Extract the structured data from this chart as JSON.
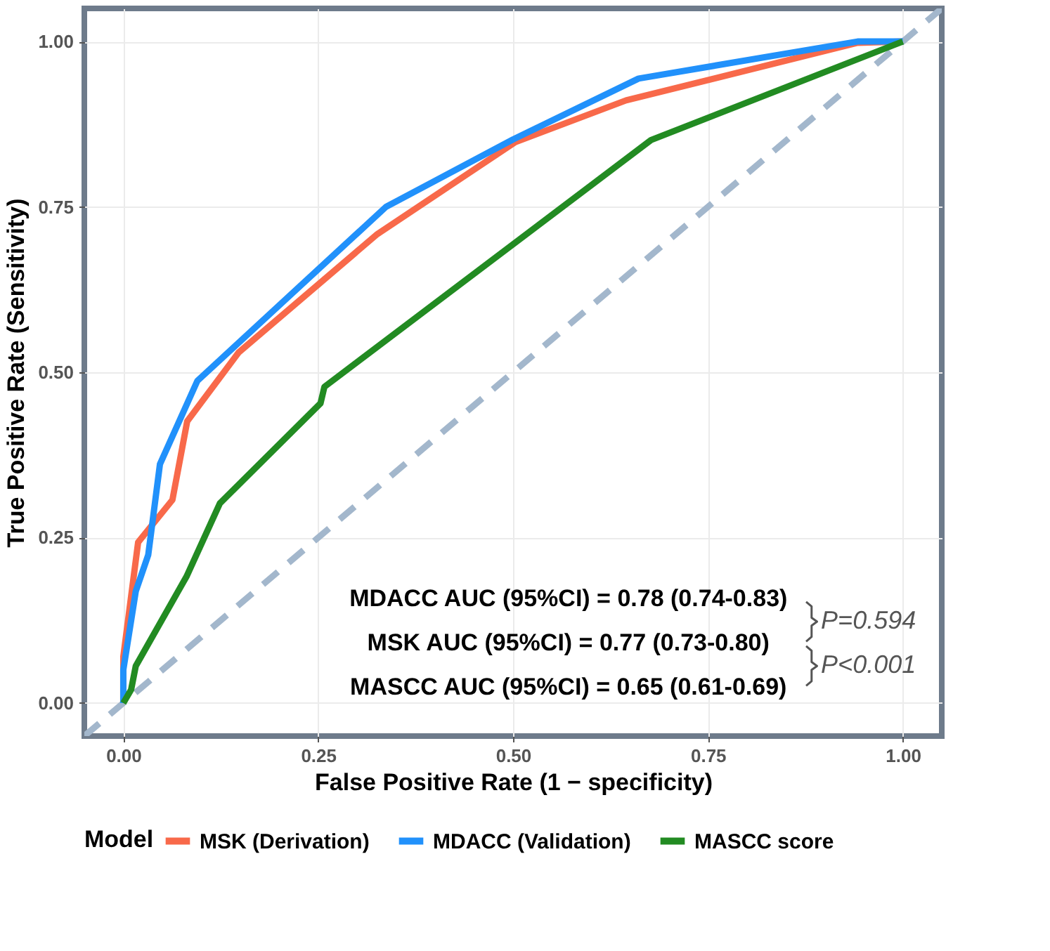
{
  "chart_data": {
    "type": "line",
    "xlabel": "False Positive Rate (1 − specificity)",
    "ylabel": "True Positive Rate (Sensitivity)",
    "legend_title": "Model",
    "legend": "bottom",
    "grid": true,
    "line_style": "solid",
    "xlim": [
      -0.05,
      1.05
    ],
    "ylim": [
      -0.05,
      1.05
    ],
    "xticks": [
      {
        "value": 0,
        "label": "0.00"
      },
      {
        "value": 0.25,
        "label": "0.25"
      },
      {
        "value": 0.5,
        "label": "0.50"
      },
      {
        "value": 0.75,
        "label": "0.75"
      },
      {
        "value": 1,
        "label": "1.00"
      }
    ],
    "yticks": [
      {
        "value": 0,
        "label": "0.00"
      },
      {
        "value": 0.25,
        "label": "0.25"
      },
      {
        "value": 0.5,
        "label": "0.50"
      },
      {
        "value": 0.75,
        "label": "0.75"
      },
      {
        "value": 1,
        "label": "1.00"
      }
    ],
    "series": [
      {
        "name": "MSK (Derivation)",
        "color": "#f8694a",
        "x": [
          0,
          0,
          0.019,
          0.063,
          0.082,
          0.148,
          0.326,
          0.503,
          0.645,
          0.942,
          1
        ],
        "values": [
          0,
          0.07,
          0.243,
          0.307,
          0.426,
          0.53,
          0.709,
          0.848,
          0.911,
          0.998,
          1
        ]
      },
      {
        "name": "MDACC (Validation)",
        "color": "#2191fb",
        "x": [
          0,
          0,
          0.016,
          0.032,
          0.047,
          0.095,
          0.337,
          0.5,
          0.661,
          0.942,
          1
        ],
        "values": [
          0,
          0.05,
          0.169,
          0.224,
          0.361,
          0.487,
          0.75,
          0.852,
          0.944,
          1,
          1
        ]
      },
      {
        "name": "MASCC score",
        "color": "#228b22",
        "x": [
          0,
          0.01,
          0.016,
          0.081,
          0.124,
          0.253,
          0.258,
          0.677,
          1
        ],
        "values": [
          0,
          0.02,
          0.056,
          0.191,
          0.302,
          0.453,
          0.478,
          0.851,
          1
        ]
      },
      {
        "type": "line",
        "color": "#a3b7cc",
        "line_style": "dashed",
        "x": [
          -0.05,
          1.05
        ],
        "values": [
          -0.05,
          1.05
        ]
      }
    ],
    "annotations": [
      "MDACC AUC (95%CI) = 0.78 (0.74-0.83)",
      "MSK AUC (95%CI) = 0.77 (0.73-0.80)",
      "MASCC AUC (95%CI) = 0.65 (0.61-0.69)",
      "P=0.594",
      "P<0.001"
    ]
  }
}
